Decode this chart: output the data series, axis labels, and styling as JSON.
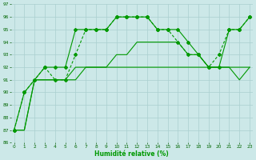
{
  "xlabel": "Humidité relative (%)",
  "bg_color": "#cce8e8",
  "grid_color": "#aacfcf",
  "line_color": "#009900",
  "xlim_min": -0.3,
  "xlim_max": 23.3,
  "ylim_min": 86,
  "ylim_max": 97,
  "yticks": [
    86,
    87,
    88,
    89,
    90,
    91,
    92,
    93,
    94,
    95,
    96,
    97
  ],
  "xticks": [
    0,
    1,
    2,
    3,
    4,
    5,
    6,
    7,
    8,
    9,
    10,
    11,
    12,
    13,
    14,
    15,
    16,
    17,
    18,
    19,
    20,
    21,
    22,
    23
  ],
  "x": [
    0,
    1,
    2,
    3,
    4,
    5,
    6,
    7,
    8,
    9,
    10,
    11,
    12,
    13,
    14,
    15,
    16,
    17,
    18,
    19,
    20,
    21,
    22,
    23
  ],
  "line1_y": [
    87,
    90,
    91,
    92,
    92,
    92,
    95,
    95,
    95,
    95,
    96,
    96,
    96,
    96,
    95,
    95,
    95,
    94,
    93,
    92,
    92,
    95,
    95,
    96
  ],
  "line2_y": [
    87,
    90,
    91,
    92,
    91,
    91,
    93,
    95,
    95,
    95,
    96,
    96,
    96,
    96,
    95,
    95,
    94,
    93,
    93,
    92,
    93,
    95,
    95,
    96
  ],
  "line3_y": [
    87,
    87,
    91,
    91,
    91,
    91,
    92,
    92,
    92,
    92,
    93,
    93,
    94,
    94,
    94,
    94,
    94,
    93,
    93,
    92,
    92,
    92,
    92,
    92
  ],
  "line4_y": [
    87,
    87,
    91,
    91,
    91,
    91,
    91,
    92,
    92,
    92,
    92,
    92,
    92,
    92,
    92,
    92,
    92,
    92,
    92,
    92,
    92,
    92,
    91,
    92
  ]
}
